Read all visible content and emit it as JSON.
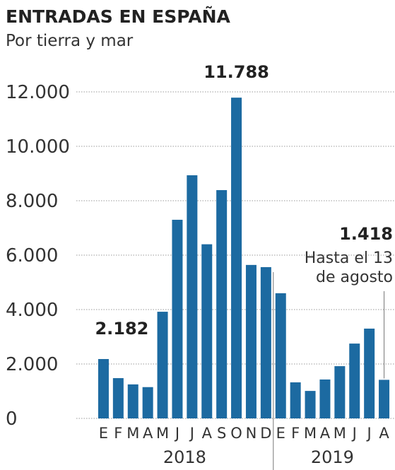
{
  "chart_data": {
    "type": "bar",
    "title": "ENTRADAS EN ESPAÑA",
    "subtitle": "Por tierra y mar",
    "categories": [
      "E",
      "F",
      "M",
      "A",
      "M",
      "J",
      "J",
      "A",
      "S",
      "O",
      "N",
      "D",
      "E",
      "F",
      "M",
      "A",
      "M",
      "J",
      "J",
      "A"
    ],
    "groups": [
      {
        "label": "2018",
        "size": 12
      },
      {
        "label": "2019",
        "size": 8
      }
    ],
    "values": [
      2182,
      1480,
      1250,
      1150,
      3920,
      7300,
      8935,
      6400,
      8390,
      11788,
      5640,
      5560,
      4600,
      1325,
      1010,
      1430,
      1920,
      2750,
      3300,
      1418
    ],
    "value_labels": [
      "2.182",
      null,
      null,
      null,
      null,
      null,
      null,
      null,
      null,
      "11.788",
      null,
      null,
      null,
      null,
      null,
      null,
      null,
      null,
      null,
      "1.418"
    ],
    "annotation": [
      "Hasta el 13",
      "de agosto"
    ],
    "color": "#1c6aa1",
    "ylim": [
      0,
      12000
    ],
    "yticks": [
      0,
      {
        "value": 2000,
        "label": "2.000"
      },
      {
        "value": 4000,
        "label": "4.000"
      },
      {
        "value": 6000,
        "label": "6.000"
      },
      {
        "value": 8000,
        "label": "8.000"
      },
      {
        "value": 10000,
        "label": "10.000"
      },
      {
        "value": 12000,
        "label": "12.000"
      }
    ],
    "grid": true
  }
}
